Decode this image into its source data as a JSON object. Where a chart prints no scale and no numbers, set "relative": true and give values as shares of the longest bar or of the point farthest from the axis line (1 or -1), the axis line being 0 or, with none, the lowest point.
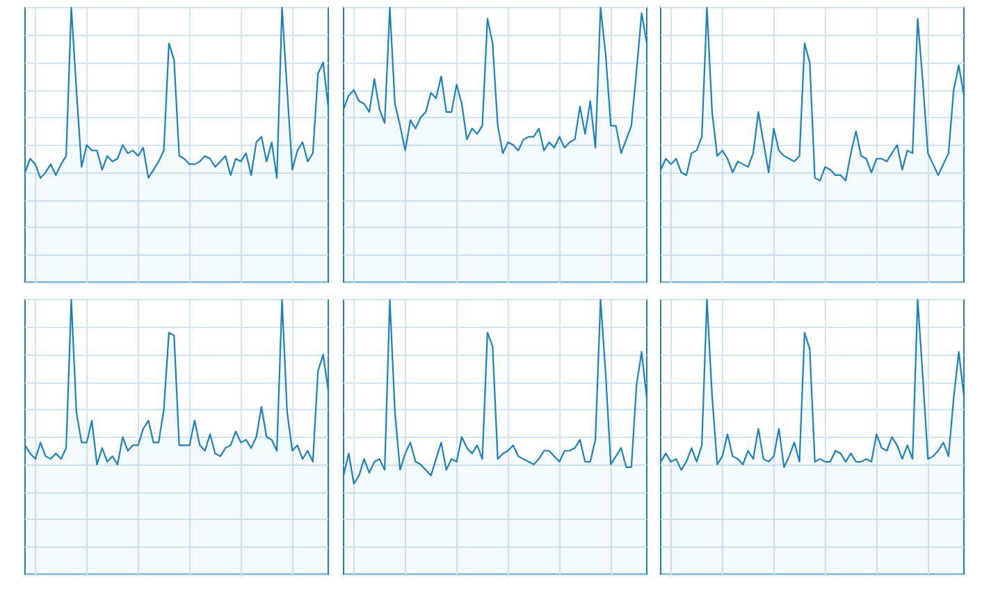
{
  "chart_data": [
    {
      "type": "area",
      "relative": true,
      "grid": true,
      "categories": [
        null,
        null,
        null,
        null,
        null,
        null,
        null,
        null,
        null,
        null,
        null,
        null,
        null,
        null,
        null,
        null,
        null,
        null,
        null,
        null,
        null,
        null,
        null,
        null,
        null,
        null,
        null,
        null,
        null,
        null,
        null,
        null,
        null,
        null,
        null,
        null,
        null,
        null,
        null,
        null,
        null,
        null,
        null,
        null,
        null,
        null,
        null,
        null,
        null,
        null,
        null,
        null,
        null,
        null,
        null,
        null,
        null,
        null,
        null,
        null
      ],
      "color": "#1a80c0",
      "values": [
        0.4,
        0.45,
        0.43,
        0.38,
        0.4,
        0.43,
        0.39,
        0.43,
        0.46,
        1.0,
        0.7,
        0.42,
        0.5,
        0.48,
        0.48,
        0.41,
        0.46,
        0.44,
        0.45,
        0.5,
        0.47,
        0.48,
        0.46,
        0.49,
        0.38,
        0.41,
        0.44,
        0.48,
        0.87,
        0.81,
        0.46,
        0.45,
        0.43,
        0.43,
        0.44,
        0.46,
        0.45,
        0.42,
        0.44,
        0.46,
        0.39,
        0.45,
        0.44,
        0.47,
        0.39,
        0.51,
        0.53,
        0.44,
        0.51,
        0.38,
        1.0,
        0.7,
        0.41,
        0.48,
        0.51,
        0.44,
        0.47,
        0.76,
        0.8,
        0.64
      ]
    },
    {
      "type": "area",
      "relative": true,
      "grid": true,
      "categories": [
        null,
        null,
        null,
        null,
        null,
        null,
        null,
        null,
        null,
        null,
        null,
        null,
        null,
        null,
        null,
        null,
        null,
        null,
        null,
        null,
        null,
        null,
        null,
        null,
        null,
        null,
        null,
        null,
        null,
        null,
        null,
        null,
        null,
        null,
        null,
        null,
        null,
        null,
        null,
        null,
        null,
        null,
        null,
        null,
        null,
        null,
        null,
        null,
        null,
        null,
        null,
        null,
        null,
        null,
        null,
        null,
        null,
        null,
        null,
        null
      ],
      "color": "#1a80c0",
      "values": [
        0.63,
        0.68,
        0.7,
        0.66,
        0.65,
        0.62,
        0.74,
        0.63,
        0.58,
        1.0,
        0.65,
        0.57,
        0.48,
        0.59,
        0.56,
        0.6,
        0.62,
        0.69,
        0.67,
        0.75,
        0.62,
        0.62,
        0.72,
        0.65,
        0.52,
        0.56,
        0.54,
        0.57,
        0.96,
        0.87,
        0.57,
        0.47,
        0.51,
        0.5,
        0.48,
        0.52,
        0.53,
        0.53,
        0.56,
        0.48,
        0.51,
        0.49,
        0.53,
        0.49,
        0.51,
        0.52,
        0.64,
        0.54,
        0.66,
        0.49,
        1.0,
        0.83,
        0.57,
        0.57,
        0.47,
        0.52,
        0.57,
        0.77,
        0.98,
        0.87
      ]
    },
    {
      "type": "area",
      "relative": true,
      "grid": true,
      "categories": [
        null,
        null,
        null,
        null,
        null,
        null,
        null,
        null,
        null,
        null,
        null,
        null,
        null,
        null,
        null,
        null,
        null,
        null,
        null,
        null,
        null,
        null,
        null,
        null,
        null,
        null,
        null,
        null,
        null,
        null,
        null,
        null,
        null,
        null,
        null,
        null,
        null,
        null,
        null,
        null,
        null,
        null,
        null,
        null,
        null,
        null,
        null,
        null,
        null,
        null,
        null,
        null,
        null,
        null,
        null,
        null,
        null,
        null,
        null,
        null
      ],
      "color": "#1a80c0",
      "values": [
        0.41,
        0.45,
        0.43,
        0.45,
        0.4,
        0.39,
        0.47,
        0.48,
        0.53,
        1.0,
        0.62,
        0.46,
        0.48,
        0.45,
        0.4,
        0.44,
        0.43,
        0.42,
        0.47,
        0.62,
        0.51,
        0.4,
        0.56,
        0.48,
        0.46,
        0.45,
        0.44,
        0.46,
        0.87,
        0.8,
        0.38,
        0.37,
        0.42,
        0.41,
        0.39,
        0.39,
        0.37,
        0.47,
        0.55,
        0.46,
        0.45,
        0.4,
        0.45,
        0.45,
        0.44,
        0.47,
        0.5,
        0.41,
        0.48,
        0.47,
        0.96,
        0.73,
        0.47,
        0.43,
        0.39,
        0.43,
        0.47,
        0.7,
        0.79,
        0.68
      ]
    },
    {
      "type": "area",
      "relative": true,
      "grid": true,
      "categories": [
        null,
        null,
        null,
        null,
        null,
        null,
        null,
        null,
        null,
        null,
        null,
        null,
        null,
        null,
        null,
        null,
        null,
        null,
        null,
        null,
        null,
        null,
        null,
        null,
        null,
        null,
        null,
        null,
        null,
        null,
        null,
        null,
        null,
        null,
        null,
        null,
        null,
        null,
        null,
        null,
        null,
        null,
        null,
        null,
        null,
        null,
        null,
        null,
        null,
        null,
        null,
        null,
        null,
        null,
        null,
        null,
        null,
        null,
        null,
        null
      ],
      "color": "#1a80c0",
      "values": [
        0.47,
        0.44,
        0.42,
        0.48,
        0.43,
        0.42,
        0.44,
        0.42,
        0.46,
        1.0,
        0.59,
        0.48,
        0.48,
        0.56,
        0.4,
        0.46,
        0.41,
        0.43,
        0.4,
        0.5,
        0.45,
        0.47,
        0.47,
        0.53,
        0.56,
        0.48,
        0.48,
        0.6,
        0.88,
        0.87,
        0.47,
        0.47,
        0.47,
        0.56,
        0.47,
        0.45,
        0.51,
        0.44,
        0.43,
        0.46,
        0.47,
        0.52,
        0.48,
        0.49,
        0.46,
        0.5,
        0.61,
        0.5,
        0.49,
        0.45,
        1.0,
        0.59,
        0.45,
        0.47,
        0.42,
        0.45,
        0.41,
        0.74,
        0.8,
        0.67
      ]
    },
    {
      "type": "area",
      "relative": true,
      "grid": true,
      "categories": [
        null,
        null,
        null,
        null,
        null,
        null,
        null,
        null,
        null,
        null,
        null,
        null,
        null,
        null,
        null,
        null,
        null,
        null,
        null,
        null,
        null,
        null,
        null,
        null,
        null,
        null,
        null,
        null,
        null,
        null,
        null,
        null,
        null,
        null,
        null,
        null,
        null,
        null,
        null,
        null,
        null,
        null,
        null,
        null,
        null,
        null,
        null,
        null,
        null,
        null,
        null,
        null,
        null,
        null,
        null,
        null,
        null,
        null,
        null,
        null
      ],
      "color": "#1a80c0",
      "values": [
        0.36,
        0.44,
        0.33,
        0.36,
        0.42,
        0.37,
        0.41,
        0.42,
        0.38,
        1.0,
        0.59,
        0.38,
        0.44,
        0.48,
        0.41,
        0.4,
        0.38,
        0.36,
        0.42,
        0.48,
        0.38,
        0.42,
        0.41,
        0.5,
        0.46,
        0.44,
        0.47,
        0.42,
        0.88,
        0.83,
        0.42,
        0.44,
        0.45,
        0.47,
        0.43,
        0.42,
        0.41,
        0.4,
        0.42,
        0.45,
        0.45,
        0.43,
        0.41,
        0.45,
        0.45,
        0.46,
        0.49,
        0.41,
        0.41,
        0.49,
        1.0,
        0.73,
        0.4,
        0.43,
        0.46,
        0.39,
        0.39,
        0.69,
        0.81,
        0.64
      ]
    },
    {
      "type": "area",
      "relative": true,
      "grid": true,
      "categories": [
        null,
        null,
        null,
        null,
        null,
        null,
        null,
        null,
        null,
        null,
        null,
        null,
        null,
        null,
        null,
        null,
        null,
        null,
        null,
        null,
        null,
        null,
        null,
        null,
        null,
        null,
        null,
        null,
        null,
        null,
        null,
        null,
        null,
        null,
        null,
        null,
        null,
        null,
        null,
        null,
        null,
        null,
        null,
        null,
        null,
        null,
        null,
        null,
        null,
        null,
        null,
        null,
        null,
        null,
        null,
        null,
        null,
        null,
        null,
        null
      ],
      "color": "#1a80c0",
      "values": [
        0.41,
        0.44,
        0.41,
        0.42,
        0.38,
        0.41,
        0.46,
        0.41,
        0.47,
        1.0,
        0.65,
        0.4,
        0.43,
        0.51,
        0.43,
        0.42,
        0.4,
        0.45,
        0.42,
        0.53,
        0.42,
        0.41,
        0.43,
        0.53,
        0.39,
        0.43,
        0.48,
        0.41,
        0.88,
        0.82,
        0.41,
        0.42,
        0.41,
        0.41,
        0.45,
        0.44,
        0.41,
        0.44,
        0.41,
        0.41,
        0.42,
        0.41,
        0.51,
        0.46,
        0.45,
        0.5,
        0.47,
        0.42,
        0.47,
        0.42,
        1.0,
        0.72,
        0.42,
        0.43,
        0.45,
        0.48,
        0.43,
        0.64,
        0.81,
        0.65
      ]
    }
  ]
}
